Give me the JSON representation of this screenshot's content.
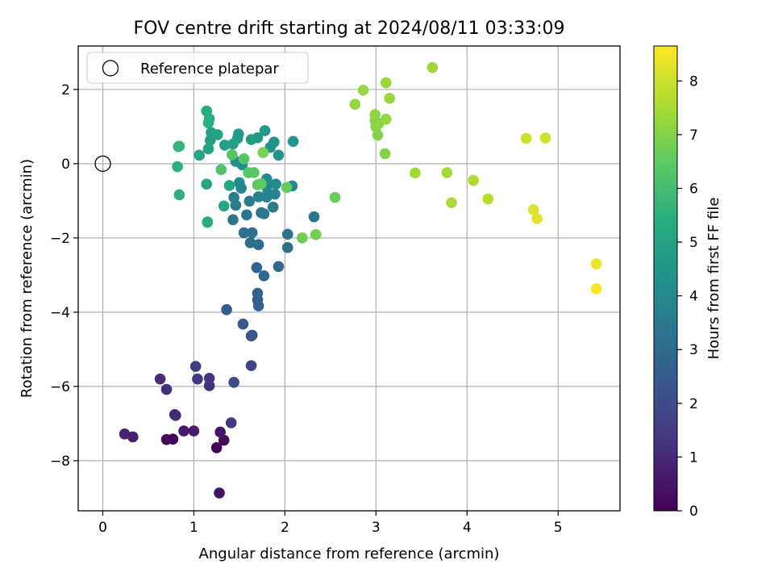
{
  "chart_data": {
    "type": "scatter",
    "title": "FOV centre drift starting at 2024/08/11 03:33:09",
    "xlabel": "Angular distance from reference (arcmin)",
    "ylabel": "Rotation from reference (arcmin)",
    "xlim": [
      -0.27,
      5.68
    ],
    "ylim": [
      -9.35,
      3.17
    ],
    "xticks": [
      0,
      1,
      2,
      3,
      4,
      5
    ],
    "yticks": [
      -8,
      -6,
      -4,
      -2,
      0,
      2
    ],
    "grid": true,
    "legend": {
      "position": "top-left",
      "entries": [
        "Reference platepar"
      ]
    },
    "reference_point": {
      "x": 0,
      "y": 0
    },
    "colorbar": {
      "label": "Hours from first FF file",
      "colormap": "viridis",
      "range": [
        0,
        8.65
      ],
      "ticks": [
        0,
        1,
        2,
        3,
        4,
        5,
        6,
        7,
        8
      ]
    },
    "points": [
      {
        "x": 1.25,
        "y": -7.65,
        "c": 0.05
      },
      {
        "x": 0.7,
        "y": -7.43,
        "c": 0.08
      },
      {
        "x": 0.77,
        "y": -7.42,
        "c": 0.1
      },
      {
        "x": 1.33,
        "y": -7.45,
        "c": 0.2
      },
      {
        "x": 1.28,
        "y": -8.87,
        "c": 0.4
      },
      {
        "x": 1.29,
        "y": -7.23,
        "c": 0.5
      },
      {
        "x": 0.89,
        "y": -7.2,
        "c": 0.6
      },
      {
        "x": 1.0,
        "y": -7.2,
        "c": 0.7
      },
      {
        "x": 0.33,
        "y": -7.36,
        "c": 0.8
      },
      {
        "x": 0.24,
        "y": -7.28,
        "c": 0.85
      },
      {
        "x": 0.79,
        "y": -6.76,
        "c": 0.9
      },
      {
        "x": 0.8,
        "y": -6.78,
        "c": 0.95
      },
      {
        "x": 0.63,
        "y": -5.8,
        "c": 1.0
      },
      {
        "x": 0.7,
        "y": -6.08,
        "c": 1.1
      },
      {
        "x": 1.17,
        "y": -5.98,
        "c": 1.2
      },
      {
        "x": 1.17,
        "y": -5.78,
        "c": 1.3
      },
      {
        "x": 1.04,
        "y": -5.8,
        "c": 1.4
      },
      {
        "x": 1.41,
        "y": -6.98,
        "c": 1.5
      },
      {
        "x": 1.02,
        "y": -5.46,
        "c": 1.6
      },
      {
        "x": 1.63,
        "y": -5.44,
        "c": 1.8
      },
      {
        "x": 1.44,
        "y": -5.89,
        "c": 2.0
      },
      {
        "x": 1.63,
        "y": -4.64,
        "c": 2.2
      },
      {
        "x": 1.64,
        "y": -4.62,
        "c": 2.3
      },
      {
        "x": 1.54,
        "y": -4.32,
        "c": 2.4
      },
      {
        "x": 1.36,
        "y": -3.93,
        "c": 2.5
      },
      {
        "x": 1.7,
        "y": -3.67,
        "c": 2.6
      },
      {
        "x": 1.7,
        "y": -3.49,
        "c": 2.7
      },
      {
        "x": 1.71,
        "y": -3.83,
        "c": 2.75
      },
      {
        "x": 1.69,
        "y": -2.8,
        "c": 2.8
      },
      {
        "x": 1.77,
        "y": -3.02,
        "c": 2.85
      },
      {
        "x": 1.93,
        "y": -2.77,
        "c": 2.9
      },
      {
        "x": 1.71,
        "y": -2.18,
        "c": 3.0
      },
      {
        "x": 1.62,
        "y": -2.13,
        "c": 3.05
      },
      {
        "x": 1.55,
        "y": -1.86,
        "c": 3.1
      },
      {
        "x": 1.64,
        "y": -1.86,
        "c": 3.15
      },
      {
        "x": 2.03,
        "y": -2.26,
        "c": 3.2
      },
      {
        "x": 2.03,
        "y": -1.9,
        "c": 3.25
      },
      {
        "x": 2.32,
        "y": -1.43,
        "c": 3.3
      },
      {
        "x": 1.43,
        "y": -1.51,
        "c": 3.35
      },
      {
        "x": 1.58,
        "y": -1.38,
        "c": 3.4
      },
      {
        "x": 1.74,
        "y": -1.32,
        "c": 3.45
      },
      {
        "x": 1.77,
        "y": -1.35,
        "c": 3.5
      },
      {
        "x": 1.87,
        "y": -1.17,
        "c": 3.55
      },
      {
        "x": 1.46,
        "y": -1.12,
        "c": 3.6
      },
      {
        "x": 1.61,
        "y": -1.01,
        "c": 3.65
      },
      {
        "x": 1.44,
        "y": -0.91,
        "c": 3.7
      },
      {
        "x": 1.71,
        "y": -0.89,
        "c": 3.75
      },
      {
        "x": 1.8,
        "y": -0.9,
        "c": 3.8
      },
      {
        "x": 1.89,
        "y": -0.82,
        "c": 3.85
      },
      {
        "x": 1.81,
        "y": -0.79,
        "c": 3.9
      },
      {
        "x": 1.52,
        "y": -0.66,
        "c": 3.95
      },
      {
        "x": 1.8,
        "y": -0.62,
        "c": 4.0
      },
      {
        "x": 2.08,
        "y": -0.6,
        "c": 4.05
      },
      {
        "x": 1.9,
        "y": -0.55,
        "c": 4.1
      },
      {
        "x": 1.5,
        "y": -0.51,
        "c": 4.15
      },
      {
        "x": 1.8,
        "y": -0.41,
        "c": 4.2
      },
      {
        "x": 1.46,
        "y": 0.06,
        "c": 4.25
      },
      {
        "x": 1.53,
        "y": -0.03,
        "c": 4.3
      },
      {
        "x": 1.84,
        "y": 0.44,
        "c": 4.35
      },
      {
        "x": 1.88,
        "y": 0.58,
        "c": 4.4
      },
      {
        "x": 1.93,
        "y": 0.23,
        "c": 4.45
      },
      {
        "x": 2.09,
        "y": 0.6,
        "c": 4.5
      },
      {
        "x": 1.78,
        "y": 0.89,
        "c": 4.55
      },
      {
        "x": 1.7,
        "y": 0.7,
        "c": 4.6
      },
      {
        "x": 1.48,
        "y": 0.68,
        "c": 4.65
      },
      {
        "x": 1.49,
        "y": 0.8,
        "c": 4.7
      },
      {
        "x": 1.63,
        "y": 0.65,
        "c": 4.75
      },
      {
        "x": 1.43,
        "y": 0.53,
        "c": 4.8
      },
      {
        "x": 1.34,
        "y": 0.5,
        "c": 4.85
      },
      {
        "x": 1.18,
        "y": 0.63,
        "c": 4.9
      },
      {
        "x": 1.19,
        "y": 0.84,
        "c": 4.95
      },
      {
        "x": 1.26,
        "y": 0.78,
        "c": 5.0
      },
      {
        "x": 1.16,
        "y": 0.4,
        "c": 5.0
      },
      {
        "x": 1.06,
        "y": 0.23,
        "c": 5.05
      },
      {
        "x": 1.14,
        "y": -0.55,
        "c": 5.1
      },
      {
        "x": 1.33,
        "y": -1.14,
        "c": 5.1
      },
      {
        "x": 1.39,
        "y": -0.59,
        "c": 5.15
      },
      {
        "x": 1.15,
        "y": -1.57,
        "c": 5.2
      },
      {
        "x": 1.15,
        "y": -1.58,
        "c": 5.3
      },
      {
        "x": 1.14,
        "y": 1.42,
        "c": 5.3
      },
      {
        "x": 1.16,
        "y": 1.1,
        "c": 5.35
      },
      {
        "x": 1.17,
        "y": 1.21,
        "c": 5.4
      },
      {
        "x": 0.82,
        "y": -0.08,
        "c": 5.45
      },
      {
        "x": 0.84,
        "y": -0.84,
        "c": 5.5
      },
      {
        "x": 0.83,
        "y": 0.46,
        "c": 5.6
      },
      {
        "x": 0.84,
        "y": 0.47,
        "c": 5.7
      },
      {
        "x": 1.3,
        "y": -0.16,
        "c": 6.2
      },
      {
        "x": 1.42,
        "y": 0.24,
        "c": 6.3
      },
      {
        "x": 1.55,
        "y": 0.13,
        "c": 6.3
      },
      {
        "x": 1.6,
        "y": -0.24,
        "c": 6.35
      },
      {
        "x": 1.66,
        "y": -0.24,
        "c": 6.4
      },
      {
        "x": 1.7,
        "y": -0.57,
        "c": 6.45
      },
      {
        "x": 1.74,
        "y": -0.54,
        "c": 6.5
      },
      {
        "x": 2.02,
        "y": -0.64,
        "c": 6.6
      },
      {
        "x": 2.55,
        "y": -0.91,
        "c": 6.65
      },
      {
        "x": 2.19,
        "y": -2.0,
        "c": 6.7
      },
      {
        "x": 2.34,
        "y": -1.91,
        "c": 6.8
      },
      {
        "x": 1.76,
        "y": 0.3,
        "c": 6.9
      },
      {
        "x": 3.1,
        "y": 0.27,
        "c": 7.0
      },
      {
        "x": 3.02,
        "y": 0.77,
        "c": 7.0
      },
      {
        "x": 3.0,
        "y": 0.99,
        "c": 7.05
      },
      {
        "x": 2.99,
        "y": 1.16,
        "c": 7.1
      },
      {
        "x": 3.03,
        "y": 1.08,
        "c": 7.1
      },
      {
        "x": 2.99,
        "y": 1.32,
        "c": 7.15
      },
      {
        "x": 3.11,
        "y": 1.2,
        "c": 7.2
      },
      {
        "x": 2.77,
        "y": 1.6,
        "c": 7.2
      },
      {
        "x": 2.86,
        "y": 1.98,
        "c": 7.25
      },
      {
        "x": 3.15,
        "y": 1.76,
        "c": 7.3
      },
      {
        "x": 3.11,
        "y": 2.18,
        "c": 7.3
      },
      {
        "x": 3.62,
        "y": 2.59,
        "c": 7.35
      },
      {
        "x": 3.43,
        "y": -0.25,
        "c": 7.4
      },
      {
        "x": 3.78,
        "y": -0.24,
        "c": 7.45
      },
      {
        "x": 3.83,
        "y": -1.05,
        "c": 7.5
      },
      {
        "x": 4.07,
        "y": -0.45,
        "c": 7.6
      },
      {
        "x": 4.23,
        "y": -0.95,
        "c": 7.7
      },
      {
        "x": 4.65,
        "y": 0.68,
        "c": 8.0
      },
      {
        "x": 4.86,
        "y": 0.69,
        "c": 8.05
      },
      {
        "x": 4.73,
        "y": -1.24,
        "c": 8.2
      },
      {
        "x": 4.77,
        "y": -1.48,
        "c": 8.25
      },
      {
        "x": 5.42,
        "y": -2.7,
        "c": 8.45
      },
      {
        "x": 5.42,
        "y": -3.37,
        "c": 8.6
      }
    ]
  }
}
